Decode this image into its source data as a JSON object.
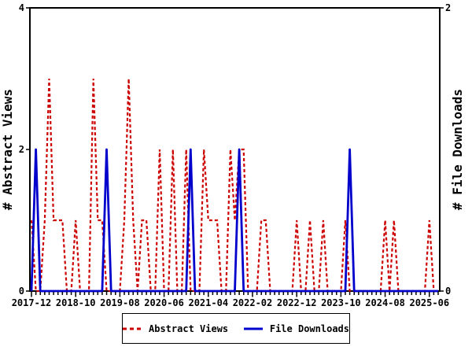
{
  "chart_data": {
    "type": "line",
    "title": "",
    "left_axis_title": "# Abstract Views",
    "right_axis_title": "# File Downloads",
    "left_axis_range": [
      0,
      4
    ],
    "right_axis_range": [
      0,
      2
    ],
    "left_ticks": [
      {
        "v": 0,
        "label": "0"
      },
      {
        "v": 2,
        "label": "2"
      },
      {
        "v": 4,
        "label": "4"
      }
    ],
    "right_ticks": [
      {
        "v": 0,
        "label": "0"
      },
      {
        "v": 2,
        "label": "2"
      }
    ],
    "x_tick_labels": [
      "2017-12",
      "2018-10",
      "2019-08",
      "2020-06",
      "2021-04",
      "2022-02",
      "2022-12",
      "2023-10",
      "2024-08",
      "2025-06"
    ],
    "x_tick_every": 10,
    "grid": "off",
    "legend_position": "bottom-center",
    "axis_color": "#000000",
    "x": [
      "2017-12",
      "2018-01",
      "2018-02",
      "2018-03",
      "2018-04",
      "2018-05",
      "2018-06",
      "2018-07",
      "2018-08",
      "2018-09",
      "2018-10",
      "2018-11",
      "2018-12",
      "2019-01",
      "2019-02",
      "2019-03",
      "2019-04",
      "2019-05",
      "2019-06",
      "2019-07",
      "2019-08",
      "2019-09",
      "2019-10",
      "2019-11",
      "2019-12",
      "2020-01",
      "2020-02",
      "2020-03",
      "2020-04",
      "2020-05",
      "2020-06",
      "2020-07",
      "2020-08",
      "2020-09",
      "2020-10",
      "2020-11",
      "2020-12",
      "2021-01",
      "2021-02",
      "2021-03",
      "2021-04",
      "2021-05",
      "2021-06",
      "2021-07",
      "2021-08",
      "2021-09",
      "2021-10",
      "2021-11",
      "2021-12",
      "2022-01",
      "2022-02",
      "2022-03",
      "2022-04",
      "2022-05",
      "2022-06",
      "2022-07",
      "2022-08",
      "2022-09",
      "2022-10",
      "2022-11",
      "2022-12",
      "2023-01",
      "2023-02",
      "2023-03",
      "2023-04",
      "2023-05",
      "2023-06",
      "2023-07",
      "2023-08",
      "2023-09",
      "2023-10",
      "2023-11",
      "2023-12",
      "2024-01",
      "2024-02",
      "2024-03",
      "2024-04",
      "2024-05",
      "2024-06",
      "2024-07",
      "2024-08",
      "2024-09",
      "2024-10",
      "2024-11",
      "2024-12",
      "2025-01",
      "2025-02",
      "2025-03",
      "2025-04",
      "2025-05",
      "2025-06",
      "2025-07",
      "2025-08"
    ],
    "series": [
      {
        "name": "Abstract Views",
        "axis": "left",
        "color": "#cc0000",
        "style": "dashed",
        "values": [
          1,
          0,
          0,
          1,
          3,
          1,
          1,
          1,
          0,
          0,
          1,
          0,
          0,
          0,
          3,
          1,
          1,
          0,
          0,
          0,
          0,
          1,
          3,
          1,
          0,
          1,
          1,
          0,
          0,
          2,
          0,
          0,
          2,
          0,
          0,
          2,
          0,
          0,
          0,
          2,
          1,
          1,
          1,
          0,
          0,
          2,
          1,
          2,
          2,
          0,
          0,
          0,
          1,
          1,
          0,
          0,
          0,
          0,
          0,
          0,
          1,
          0,
          0,
          1,
          0,
          0,
          1,
          0,
          0,
          0,
          0,
          1,
          0,
          0,
          0,
          0,
          0,
          0,
          0,
          0,
          1,
          0,
          1,
          0,
          0,
          0,
          0,
          0,
          0,
          0,
          1,
          0,
          0
        ]
      },
      {
        "name": "File Downloads",
        "axis": "right",
        "color": "#0000cc",
        "style": "solid",
        "values": [
          0,
          1,
          0,
          0,
          0,
          0,
          0,
          0,
          0,
          0,
          0,
          0,
          0,
          0,
          0,
          0,
          0,
          1,
          0,
          0,
          0,
          0,
          0,
          0,
          0,
          0,
          0,
          0,
          0,
          0,
          0,
          0,
          0,
          0,
          0,
          0,
          1,
          0,
          0,
          0,
          0,
          0,
          0,
          0,
          0,
          0,
          0,
          1,
          0,
          0,
          0,
          0,
          0,
          0,
          0,
          0,
          0,
          0,
          0,
          0,
          0,
          0,
          0,
          0,
          0,
          0,
          0,
          0,
          0,
          0,
          0,
          0,
          1,
          0,
          0,
          0,
          0,
          0,
          0,
          0,
          0,
          0,
          0,
          0,
          0,
          0,
          0,
          0,
          0,
          0,
          0,
          0,
          0
        ]
      }
    ]
  },
  "legend": {
    "abstract_views_label": "Abstract Views",
    "file_downloads_label": "File Downloads"
  }
}
